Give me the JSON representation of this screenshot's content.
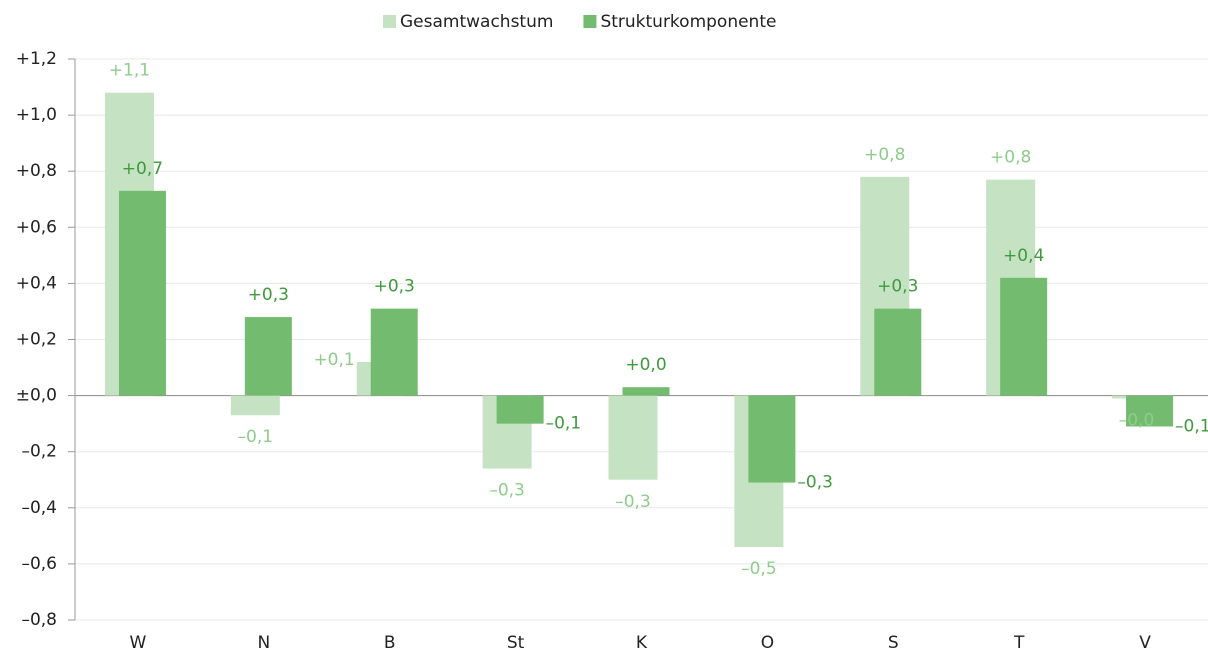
{
  "chart_data": {
    "type": "bar",
    "categories": [
      "W",
      "N",
      "B",
      "St",
      "K",
      "O",
      "S",
      "T",
      "V"
    ],
    "series": [
      {
        "name": "Gesamtwachstum",
        "color": "#c5e3c3",
        "label_color": "#8fcc8b",
        "values": [
          1.08,
          -0.07,
          0.12,
          -0.26,
          -0.3,
          -0.54,
          0.78,
          0.77,
          -0.01
        ],
        "value_labels": [
          "+1,1",
          "–0,1",
          "+0,1",
          "–0,3",
          "–0,3",
          "–0,5",
          "+0,8",
          "+0,8",
          "–0,0"
        ]
      },
      {
        "name": "Strukturkomponente",
        "color": "#72bb6f",
        "label_color": "#3f9a3c",
        "values": [
          0.73,
          0.28,
          0.31,
          -0.1,
          0.03,
          -0.31,
          0.31,
          0.42,
          -0.11
        ],
        "value_labels": [
          "+0,7",
          "+0,3",
          "+0,3",
          "–0,1",
          "+0,0",
          "–0,3",
          "+0,3",
          "+0,4",
          "–0,1"
        ]
      }
    ],
    "ylim": [
      -0.8,
      1.2
    ],
    "yticks": [
      {
        "value": -0.8,
        "label": "–0,8"
      },
      {
        "value": -0.6,
        "label": "–0,6"
      },
      {
        "value": -0.4,
        "label": "–0,4"
      },
      {
        "value": -0.2,
        "label": "–0,2"
      },
      {
        "value": 0,
        "label": "±0,0"
      },
      {
        "value": 0.2,
        "label": "+0,2"
      },
      {
        "value": 0.4,
        "label": "+0,4"
      },
      {
        "value": 0.6,
        "label": "+0,6"
      },
      {
        "value": 0.8,
        "label": "+0,8"
      },
      {
        "value": 1.0,
        "label": "+1,0"
      },
      {
        "value": 1.2,
        "label": "+1,2"
      }
    ],
    "grid": true,
    "legend": "top"
  }
}
